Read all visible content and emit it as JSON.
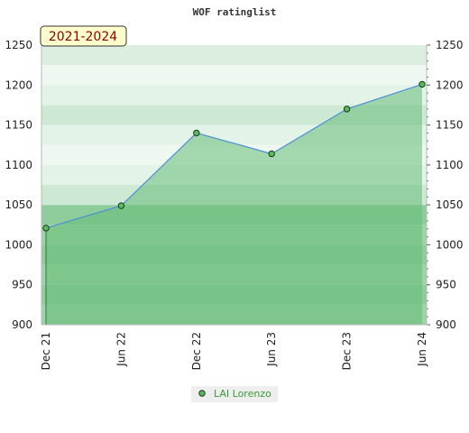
{
  "chart_data": {
    "type": "area",
    "title": "WOF ratinglist",
    "period_label": "2021-2024",
    "x_ticks": [
      "Dec 21",
      "Jun 22",
      "Dec 22",
      "Jun 23",
      "Dec 23",
      "Jun 24"
    ],
    "y_ticks": [
      900,
      950,
      1000,
      1050,
      1100,
      1150,
      1200,
      1250
    ],
    "ylim": [
      900,
      1250
    ],
    "series": [
      {
        "name": "LAI Lorenzo",
        "x": [
          "Dec 21",
          "Jun 22",
          "Dec 22",
          "Jun 23",
          "Dec 23",
          "Jun 24"
        ],
        "values": [
          1021,
          1049,
          1140,
          1114,
          1170,
          1201
        ]
      }
    ],
    "legend_position": "bottom-center",
    "grid": "horizontal bands",
    "colors": {
      "line": "#4a8fd8",
      "fill": "#66bb77",
      "marker_fill": "#5cb85c",
      "marker_stroke": "#1a3a1a",
      "period_bg": "#ffffcc",
      "period_text": "#8b0000"
    }
  }
}
